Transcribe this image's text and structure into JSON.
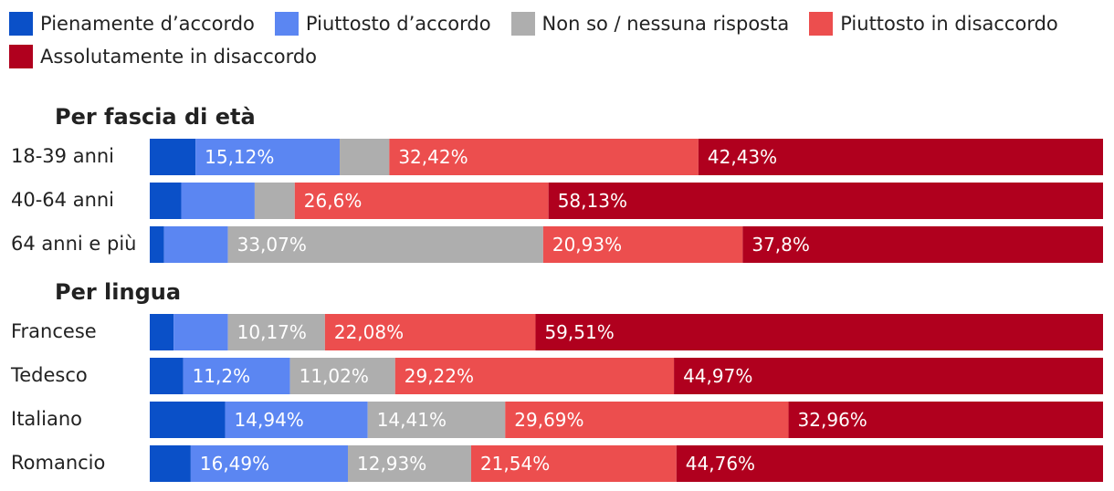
{
  "chart_data": {
    "type": "bar",
    "orientation": "horizontal",
    "stacked": true,
    "legend_position": "top",
    "series": [
      {
        "name": "Pienamente d’accordo",
        "color": "#0a50c8"
      },
      {
        "name": "Piuttosto d’accordo",
        "color": "#5b86f2"
      },
      {
        "name": "Non so / nessuna risposta",
        "color": "#aeaeae"
      },
      {
        "name": "Piuttosto in disaccordo",
        "color": "#ec4e4e"
      },
      {
        "name": "Assolutamente in disaccordo",
        "color": "#b0001e"
      }
    ],
    "groups": [
      {
        "title": "Per fascia di età",
        "rows": [
          {
            "category": "18-39 anni",
            "values": [
              4.8,
              15.12,
              5.2,
              32.42,
              42.43
            ],
            "labels": [
              "",
              "15,12%",
              "",
              "32,42%",
              "42,43%"
            ]
          },
          {
            "category": "40-64 anni",
            "values": [
              3.3,
              7.7,
              4.2,
              26.6,
              58.13
            ],
            "labels": [
              "",
              "",
              "",
              "26,6%",
              "58,13%"
            ]
          },
          {
            "category": "64 anni e più",
            "values": [
              1.5,
              6.7,
              33.07,
              20.93,
              37.8
            ],
            "labels": [
              "",
              "",
              "33,07%",
              "20,93%",
              "37,8%"
            ]
          }
        ]
      },
      {
        "title": "Per lingua",
        "rows": [
          {
            "category": "Francese",
            "values": [
              2.5,
              5.7,
              10.17,
              22.08,
              59.51
            ],
            "labels": [
              "",
              "",
              "10,17%",
              "22,08%",
              "59,51%"
            ]
          },
          {
            "category": "Tedesco",
            "values": [
              3.5,
              11.2,
              11.02,
              29.22,
              44.97
            ],
            "labels": [
              "",
              "11,2%",
              "11,02%",
              "29,22%",
              "44,97%"
            ]
          },
          {
            "category": "Italiano",
            "values": [
              7.9,
              14.94,
              14.41,
              29.69,
              32.96
            ],
            "labels": [
              "",
              "14,94%",
              "14,41%",
              "29,69%",
              "32,96%"
            ]
          },
          {
            "category": "Romancio",
            "values": [
              4.3,
              16.49,
              12.93,
              21.54,
              44.76
            ],
            "labels": [
              "",
              "16,49%",
              "12,93%",
              "21,54%",
              "44,76%"
            ]
          }
        ]
      }
    ],
    "xlim": [
      0,
      100
    ],
    "grid": false
  }
}
